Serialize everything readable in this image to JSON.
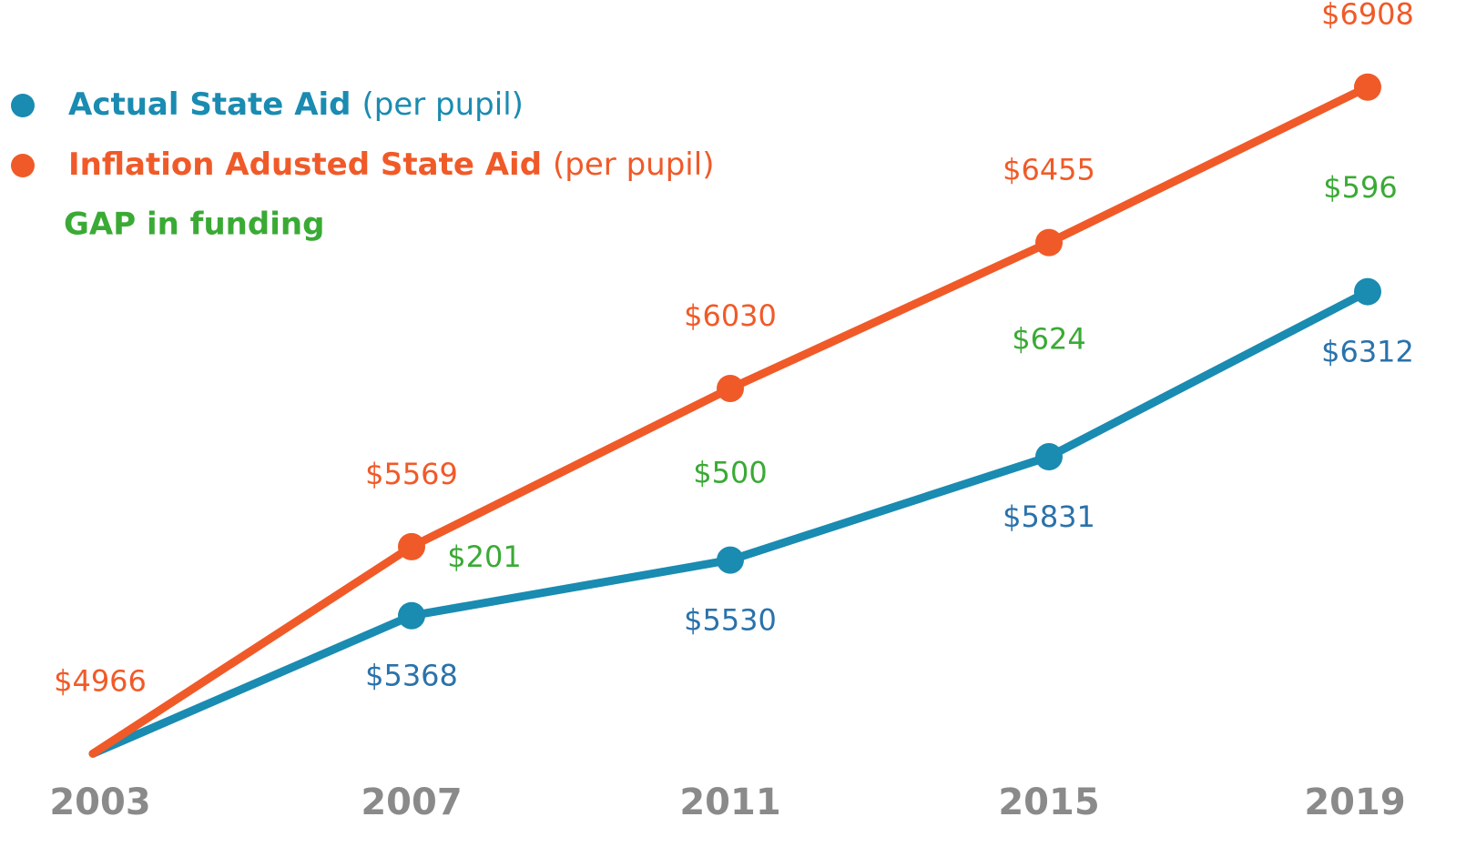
{
  "chart_data": {
    "type": "line",
    "categories": [
      "2003",
      "2007",
      "2011",
      "2015",
      "2019"
    ],
    "series": [
      {
        "name": "Actual State Aid",
        "color": "#1a8bb1",
        "label_color": "#2a72ab",
        "values": [
          4966,
          5368,
          5530,
          5831,
          6312
        ],
        "value_labels": [
          null,
          "$5368",
          "$5530",
          "$5831",
          "$6312"
        ]
      },
      {
        "name": "Inflation Adusted State Aid",
        "color": "#f05a28",
        "label_color": "#f05a28",
        "values": [
          4966,
          5569,
          6030,
          6455,
          6908
        ],
        "value_labels": [
          "$4966",
          "$5569",
          "$6030",
          "$6455",
          "$6908"
        ]
      }
    ],
    "legend_suffix": "(per pupil)",
    "gap": {
      "name": "GAP in funding",
      "color": "#3aaa35",
      "values": [
        null,
        201,
        500,
        624,
        596
      ],
      "value_labels": [
        null,
        "$201",
        "$500",
        "$624",
        "$596"
      ]
    },
    "ylim": [
      4800,
      7000
    ]
  }
}
